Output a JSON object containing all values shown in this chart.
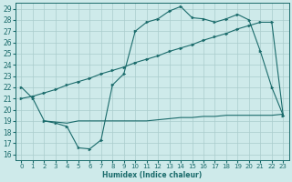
{
  "xlabel": "Humidex (Indice chaleur)",
  "bg_color": "#ceeaea",
  "grid_color": "#aacccc",
  "line_color": "#1a6b6b",
  "xlim": [
    -0.5,
    23.5
  ],
  "ylim": [
    15.5,
    29.5
  ],
  "xticks": [
    0,
    1,
    2,
    3,
    4,
    5,
    6,
    7,
    8,
    9,
    10,
    11,
    12,
    13,
    14,
    15,
    16,
    17,
    18,
    19,
    20,
    21,
    22,
    23
  ],
  "yticks": [
    16,
    17,
    18,
    19,
    20,
    21,
    22,
    23,
    24,
    25,
    26,
    27,
    28,
    29
  ],
  "line1_x": [
    0,
    1,
    2,
    3,
    4,
    5,
    6,
    7,
    8,
    9,
    10,
    11,
    12,
    13,
    14,
    15,
    16,
    17,
    18,
    19,
    20,
    21,
    22,
    23
  ],
  "line1_y": [
    22,
    21,
    19,
    18.8,
    18.5,
    16.6,
    16.5,
    17.3,
    22.2,
    23.2,
    27,
    27.8,
    28.1,
    28.8,
    29.2,
    28.2,
    28.1,
    27.8,
    28.1,
    28.5,
    28.0,
    25.2,
    22.0,
    19.5
  ],
  "line2_x": [
    0,
    1,
    2,
    3,
    4,
    5,
    6,
    7,
    8,
    9,
    10,
    11,
    12,
    13,
    14,
    15,
    16,
    17,
    18,
    19,
    20,
    21,
    22,
    23
  ],
  "line2_y": [
    21.0,
    21.2,
    21.5,
    21.8,
    22.2,
    22.5,
    22.8,
    23.2,
    23.5,
    23.8,
    24.2,
    24.5,
    24.8,
    25.2,
    25.5,
    25.8,
    26.2,
    26.5,
    26.8,
    27.2,
    27.5,
    27.8,
    27.8,
    19.5
  ],
  "line3_x": [
    2,
    3,
    4,
    5,
    6,
    7,
    8,
    9,
    10,
    11,
    12,
    13,
    14,
    15,
    16,
    17,
    18,
    19,
    20,
    21,
    22,
    23
  ],
  "line3_y": [
    19.0,
    18.9,
    18.8,
    19.0,
    19.0,
    19.0,
    19.0,
    19.0,
    19.0,
    19.0,
    19.1,
    19.2,
    19.3,
    19.3,
    19.4,
    19.4,
    19.5,
    19.5,
    19.5,
    19.5,
    19.5,
    19.6
  ]
}
